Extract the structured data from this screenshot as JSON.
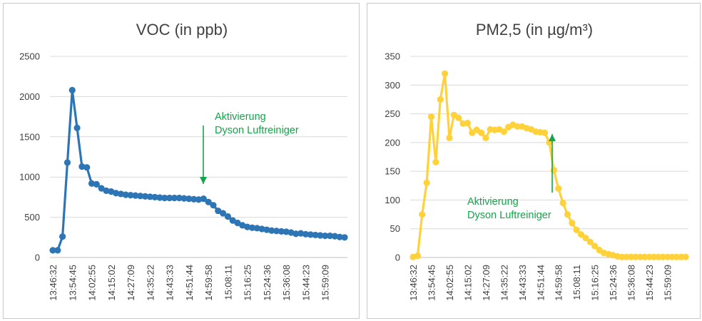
{
  "colors": {
    "voc": "#2e75b6",
    "pm": "#ffd23c",
    "grid": "#d9d9d9",
    "axis": "#bfbfbf",
    "annotation": "#16a34a"
  },
  "chart_data": [
    {
      "type": "line",
      "title": "VOC (in ppb)",
      "xlabel": "",
      "ylabel": "",
      "ylim": [
        0,
        2500
      ],
      "yticks": [
        "0",
        "500",
        "1000",
        "1500",
        "2000",
        "2500"
      ],
      "xtick_labels": [
        "13:46:32",
        "13:54:45",
        "14:02:55",
        "14:15:02",
        "14:27:09",
        "14:35:22",
        "14:43:33",
        "14:51:44",
        "14:59:58",
        "15:08:11",
        "15:16:25",
        "15:24:36",
        "15:36:08",
        "15:44:23",
        "15:59:09"
      ],
      "xtick_every": 4,
      "grid": true,
      "legend": "none",
      "series": [
        {
          "values": [
            90,
            90,
            260,
            1180,
            2080,
            1610,
            1130,
            1120,
            920,
            910,
            860,
            830,
            820,
            800,
            790,
            780,
            775,
            770,
            765,
            760,
            755,
            750,
            745,
            740,
            740,
            740,
            740,
            735,
            730,
            725,
            720,
            730,
            690,
            650,
            580,
            550,
            510,
            460,
            430,
            400,
            380,
            370,
            365,
            355,
            345,
            335,
            330,
            325,
            320,
            310,
            295,
            300,
            290,
            285,
            280,
            275,
            270,
            270,
            265,
            255,
            250
          ]
        }
      ],
      "annotations": [
        {
          "lines": [
            "Aktivierung",
            "Dyson Luftreiniger"
          ],
          "arrow": "down",
          "at_index": 30
        }
      ]
    },
    {
      "type": "line",
      "title": "PM2,5 (in µg/m³)",
      "xlabel": "",
      "ylabel": "",
      "ylim": [
        0,
        350
      ],
      "yticks": [
        "0",
        "50",
        "100",
        "150",
        "200",
        "250",
        "300",
        "350"
      ],
      "xtick_labels": [
        "13:46:32",
        "13:54:45",
        "14:02:55",
        "14:15:02",
        "14:27:09",
        "14:35:22",
        "14:43:33",
        "14:51:44",
        "14:59:58",
        "15:08:11",
        "15:16:25",
        "15:24:36",
        "15:36:08",
        "15:44:23",
        "15:59:09"
      ],
      "xtick_every": 4,
      "grid": true,
      "legend": "none",
      "series": [
        {
          "values": [
            1,
            3,
            75,
            130,
            245,
            166,
            275,
            320,
            208,
            248,
            243,
            233,
            234,
            217,
            222,
            217,
            208,
            223,
            222,
            223,
            219,
            227,
            231,
            228,
            228,
            225,
            223,
            219,
            218,
            217,
            200,
            152,
            120,
            95,
            75,
            60,
            48,
            40,
            34,
            27,
            20,
            13,
            8,
            6,
            4,
            2,
            1,
            1,
            1,
            1,
            1,
            1,
            1,
            1,
            1,
            1,
            1,
            1,
            1,
            1,
            1
          ]
        }
      ],
      "annotations": [
        {
          "lines": [
            "Aktivierung",
            "Dyson Luftreiniger"
          ],
          "arrow": "up",
          "at_index": 30
        }
      ]
    }
  ]
}
